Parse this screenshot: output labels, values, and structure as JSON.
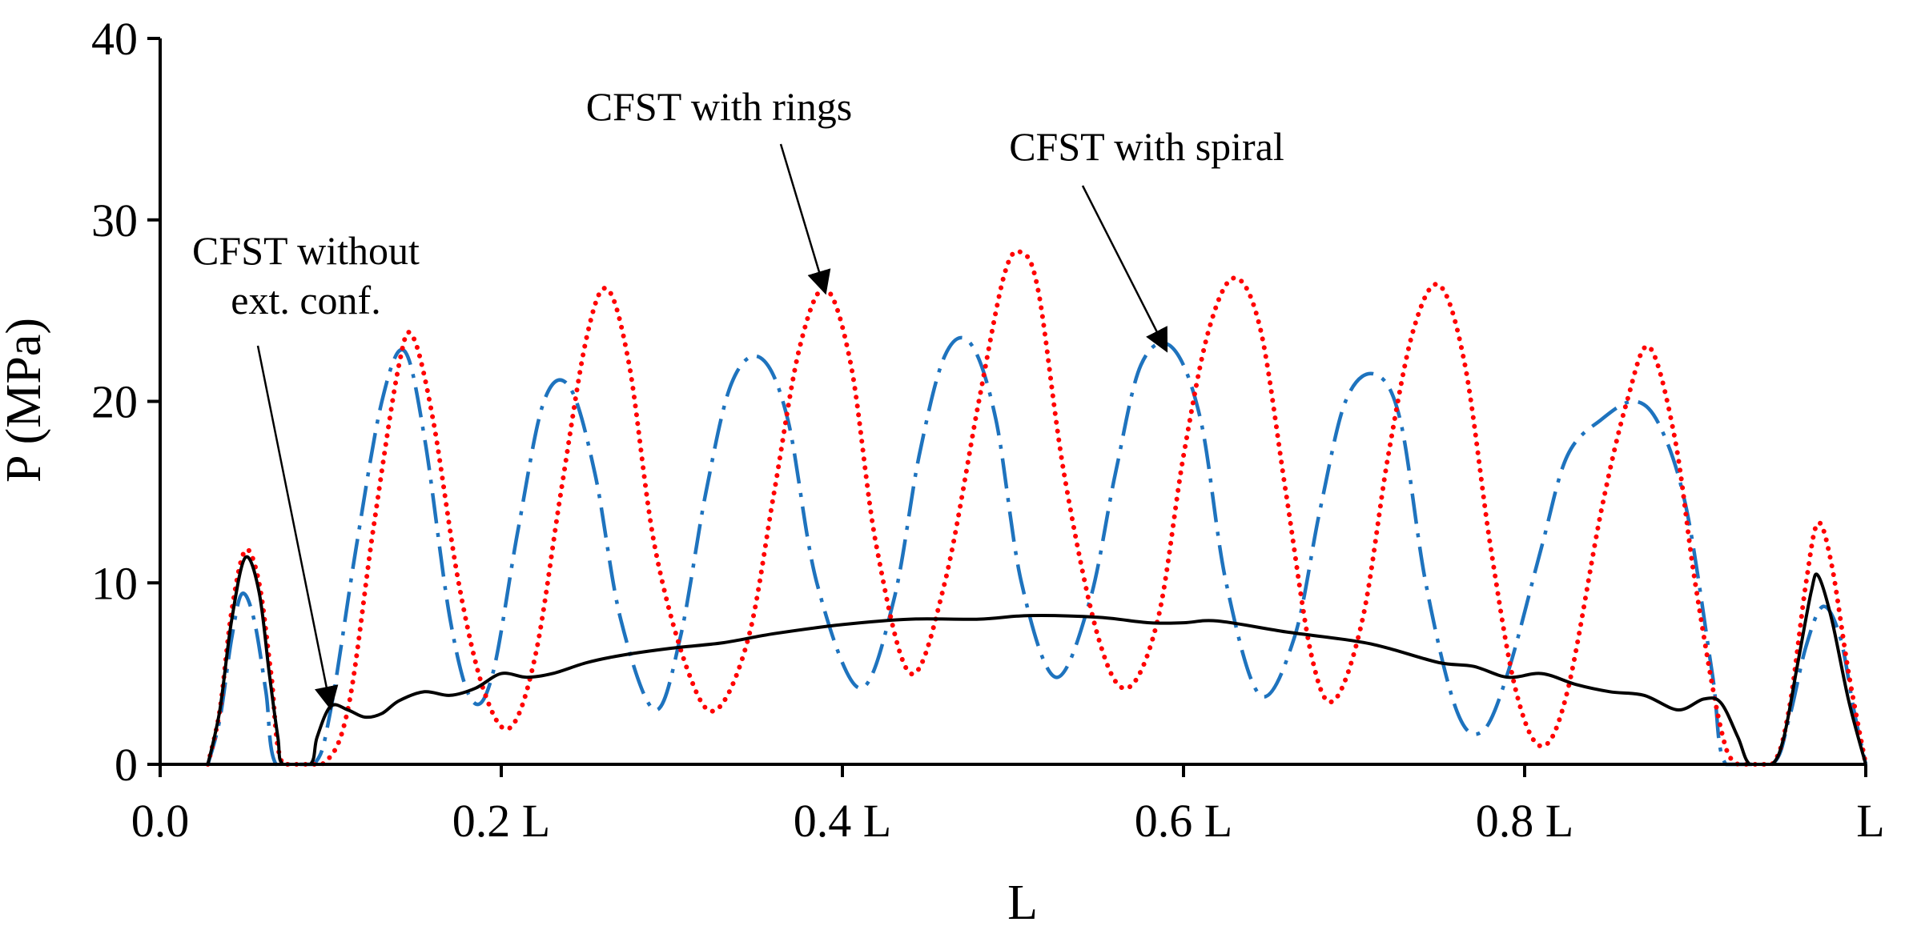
{
  "chart_data": {
    "type": "line",
    "title": "",
    "xlabel": "L",
    "ylabel": "P (MPa)",
    "xlim": [
      0,
      1
    ],
    "ylim": [
      0,
      40
    ],
    "y_ticks": [
      {
        "value": 0,
        "label": "0"
      },
      {
        "value": 10,
        "label": "10"
      },
      {
        "value": 20,
        "label": "20"
      },
      {
        "value": 30,
        "label": "30"
      },
      {
        "value": 40,
        "label": "40"
      }
    ],
    "x_ticks": [
      {
        "value": 0.0,
        "label": "0.0"
      },
      {
        "value": 0.2,
        "label": "0.2 L"
      },
      {
        "value": 0.4,
        "label": "0.4 L"
      },
      {
        "value": 0.6,
        "label": "0.6 L"
      },
      {
        "value": 0.8,
        "label": "0.8 L"
      },
      {
        "value": 1.0,
        "label": "L"
      }
    ],
    "grid": false,
    "series": [
      {
        "name": "CFST without ext. conf.",
        "color": "#000000",
        "style": "solid",
        "points": [
          [
            0.028,
            0
          ],
          [
            0.035,
            3
          ],
          [
            0.042,
            8
          ],
          [
            0.05,
            11.4
          ],
          [
            0.058,
            9.5
          ],
          [
            0.064,
            5
          ],
          [
            0.069,
            1.5
          ],
          [
            0.072,
            0
          ],
          [
            0.088,
            0
          ],
          [
            0.092,
            1.5
          ],
          [
            0.1,
            3.2
          ],
          [
            0.11,
            3.0
          ],
          [
            0.12,
            2.6
          ],
          [
            0.13,
            2.8
          ],
          [
            0.14,
            3.5
          ],
          [
            0.155,
            4.0
          ],
          [
            0.17,
            3.8
          ],
          [
            0.185,
            4.2
          ],
          [
            0.2,
            5.0
          ],
          [
            0.215,
            4.8
          ],
          [
            0.23,
            5.0
          ],
          [
            0.25,
            5.6
          ],
          [
            0.27,
            6.0
          ],
          [
            0.3,
            6.4
          ],
          [
            0.33,
            6.7
          ],
          [
            0.36,
            7.2
          ],
          [
            0.4,
            7.7
          ],
          [
            0.44,
            8.0
          ],
          [
            0.48,
            8.0
          ],
          [
            0.51,
            8.2
          ],
          [
            0.55,
            8.1
          ],
          [
            0.58,
            7.8
          ],
          [
            0.6,
            7.8
          ],
          [
            0.62,
            7.9
          ],
          [
            0.66,
            7.3
          ],
          [
            0.7,
            6.8
          ],
          [
            0.72,
            6.4
          ],
          [
            0.75,
            5.6
          ],
          [
            0.77,
            5.4
          ],
          [
            0.79,
            4.8
          ],
          [
            0.81,
            5.0
          ],
          [
            0.83,
            4.4
          ],
          [
            0.85,
            4.0
          ],
          [
            0.87,
            3.8
          ],
          [
            0.89,
            3.0
          ],
          [
            0.905,
            3.6
          ],
          [
            0.915,
            3.4
          ],
          [
            0.925,
            1.5
          ],
          [
            0.932,
            0
          ],
          [
            0.945,
            0
          ],
          [
            0.952,
            1.5
          ],
          [
            0.96,
            5.5
          ],
          [
            0.968,
            9.5
          ],
          [
            0.972,
            10.4
          ],
          [
            0.98,
            8
          ],
          [
            0.99,
            3.5
          ],
          [
            1.0,
            0
          ]
        ]
      },
      {
        "name": "CFST with rings",
        "color": "#ff0000",
        "style": "dotted",
        "points": [
          [
            0.028,
            0
          ],
          [
            0.035,
            3
          ],
          [
            0.042,
            8.5
          ],
          [
            0.05,
            11.8
          ],
          [
            0.058,
            10
          ],
          [
            0.065,
            5
          ],
          [
            0.072,
            0
          ],
          [
            0.095,
            0
          ],
          [
            0.11,
            3
          ],
          [
            0.125,
            13
          ],
          [
            0.14,
            22
          ],
          [
            0.148,
            23.6
          ],
          [
            0.16,
            19
          ],
          [
            0.175,
            10
          ],
          [
            0.19,
            4
          ],
          [
            0.205,
            2.0
          ],
          [
            0.22,
            6
          ],
          [
            0.235,
            15
          ],
          [
            0.25,
            23.5
          ],
          [
            0.262,
            26.2
          ],
          [
            0.275,
            22
          ],
          [
            0.29,
            12
          ],
          [
            0.31,
            5
          ],
          [
            0.326,
            3.0
          ],
          [
            0.345,
            7
          ],
          [
            0.36,
            15
          ],
          [
            0.375,
            23
          ],
          [
            0.39,
            26.2
          ],
          [
            0.405,
            22
          ],
          [
            0.42,
            12
          ],
          [
            0.44,
            5.0
          ],
          [
            0.46,
            10
          ],
          [
            0.48,
            20
          ],
          [
            0.495,
            27
          ],
          [
            0.505,
            28.2
          ],
          [
            0.515,
            26
          ],
          [
            0.53,
            16
          ],
          [
            0.55,
            7
          ],
          [
            0.567,
            4.2
          ],
          [
            0.585,
            8
          ],
          [
            0.6,
            17
          ],
          [
            0.615,
            24
          ],
          [
            0.63,
            26.8
          ],
          [
            0.645,
            24
          ],
          [
            0.66,
            15
          ],
          [
            0.675,
            6
          ],
          [
            0.688,
            3.5
          ],
          [
            0.705,
            8
          ],
          [
            0.72,
            17
          ],
          [
            0.735,
            24
          ],
          [
            0.75,
            26.4
          ],
          [
            0.765,
            22
          ],
          [
            0.78,
            12
          ],
          [
            0.795,
            4
          ],
          [
            0.81,
            1.0
          ],
          [
            0.825,
            4
          ],
          [
            0.845,
            14
          ],
          [
            0.86,
            20
          ],
          [
            0.873,
            23.0
          ],
          [
            0.888,
            18
          ],
          [
            0.9,
            10
          ],
          [
            0.915,
            2
          ],
          [
            0.925,
            0
          ],
          [
            0.945,
            0
          ],
          [
            0.955,
            3
          ],
          [
            0.965,
            10
          ],
          [
            0.972,
            13.3
          ],
          [
            0.98,
            11
          ],
          [
            0.99,
            5
          ],
          [
            1.0,
            0
          ]
        ]
      },
      {
        "name": "CFST with spiral",
        "color": "#1e73be",
        "style": "dashdot",
        "points": [
          [
            0.028,
            0
          ],
          [
            0.035,
            2.5
          ],
          [
            0.042,
            7
          ],
          [
            0.048,
            9.4
          ],
          [
            0.055,
            8
          ],
          [
            0.062,
            4
          ],
          [
            0.068,
            0
          ],
          [
            0.09,
            0
          ],
          [
            0.1,
            3
          ],
          [
            0.115,
            12
          ],
          [
            0.13,
            20
          ],
          [
            0.143,
            22.8
          ],
          [
            0.155,
            18
          ],
          [
            0.17,
            8
          ],
          [
            0.183,
            3.5
          ],
          [
            0.195,
            5
          ],
          [
            0.21,
            13
          ],
          [
            0.225,
            20
          ],
          [
            0.24,
            20.8
          ],
          [
            0.255,
            16
          ],
          [
            0.27,
            8
          ],
          [
            0.29,
            3.0
          ],
          [
            0.305,
            7
          ],
          [
            0.32,
            15
          ],
          [
            0.335,
            21
          ],
          [
            0.352,
            22.4
          ],
          [
            0.368,
            19
          ],
          [
            0.385,
            10
          ],
          [
            0.41,
            4.2
          ],
          [
            0.43,
            9
          ],
          [
            0.445,
            17
          ],
          [
            0.46,
            22.5
          ],
          [
            0.475,
            23.2
          ],
          [
            0.49,
            19
          ],
          [
            0.505,
            10
          ],
          [
            0.525,
            4.8
          ],
          [
            0.545,
            9
          ],
          [
            0.56,
            16
          ],
          [
            0.575,
            22
          ],
          [
            0.593,
            23.0
          ],
          [
            0.61,
            19
          ],
          [
            0.625,
            10
          ],
          [
            0.645,
            3.8
          ],
          [
            0.665,
            7
          ],
          [
            0.68,
            14
          ],
          [
            0.695,
            20
          ],
          [
            0.712,
            21.5
          ],
          [
            0.727,
            19
          ],
          [
            0.742,
            10
          ],
          [
            0.76,
            3
          ],
          [
            0.775,
            1.8
          ],
          [
            0.79,
            5
          ],
          [
            0.81,
            12
          ],
          [
            0.825,
            17
          ],
          [
            0.845,
            19
          ],
          [
            0.865,
            20
          ],
          [
            0.88,
            18.5
          ],
          [
            0.895,
            14
          ],
          [
            0.91,
            5
          ],
          [
            0.918,
            0
          ],
          [
            0.945,
            0
          ],
          [
            0.955,
            2.5
          ],
          [
            0.965,
            6.5
          ],
          [
            0.975,
            8.7
          ],
          [
            0.985,
            7
          ],
          [
            0.993,
            3
          ],
          [
            1.0,
            0
          ]
        ]
      }
    ],
    "annotations": [
      {
        "lines": [
          "CFST without",
          "ext. conf."
        ],
        "arrow_to": [
          0.1,
          3.1
        ]
      },
      {
        "lines": [
          "CFST with rings"
        ],
        "arrow_to": [
          0.39,
          26.0
        ]
      },
      {
        "lines": [
          "CFST with spiral"
        ],
        "arrow_to": [
          0.59,
          22.8
        ]
      }
    ]
  }
}
